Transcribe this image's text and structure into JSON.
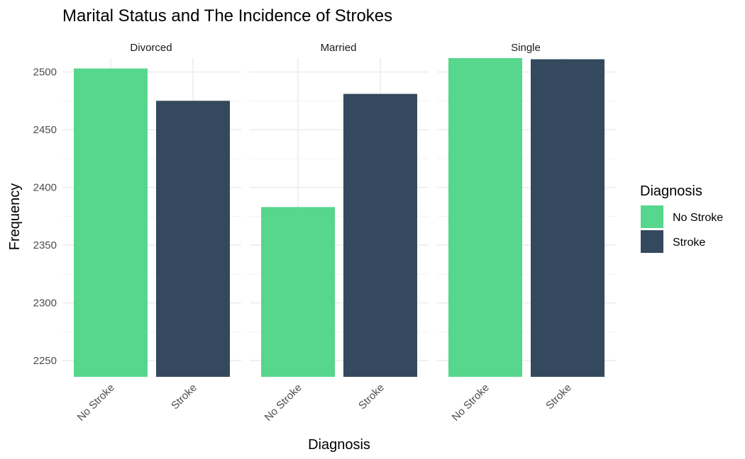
{
  "chart_data": {
    "type": "bar",
    "title": "Marital Status and The Incidence of Strokes",
    "xlabel": "Diagnosis",
    "ylabel": "Frequency",
    "ylim": [
      2236,
      2512
    ],
    "yticks": [
      2250,
      2300,
      2350,
      2400,
      2450,
      2500
    ],
    "grid": true,
    "legend": {
      "title": "Diagnosis",
      "placement": "right",
      "entries": [
        {
          "label": "No Stroke",
          "color": "#57D68D"
        },
        {
          "label": "Stroke",
          "color": "#34495E"
        }
      ]
    },
    "categories": [
      "No Stroke",
      "Stroke"
    ],
    "panels": [
      {
        "name": "Divorced",
        "values": [
          2503,
          2475
        ]
      },
      {
        "name": "Married",
        "values": [
          2383,
          2481
        ]
      },
      {
        "name": "Single",
        "values": [
          2512,
          2511
        ]
      }
    ]
  }
}
